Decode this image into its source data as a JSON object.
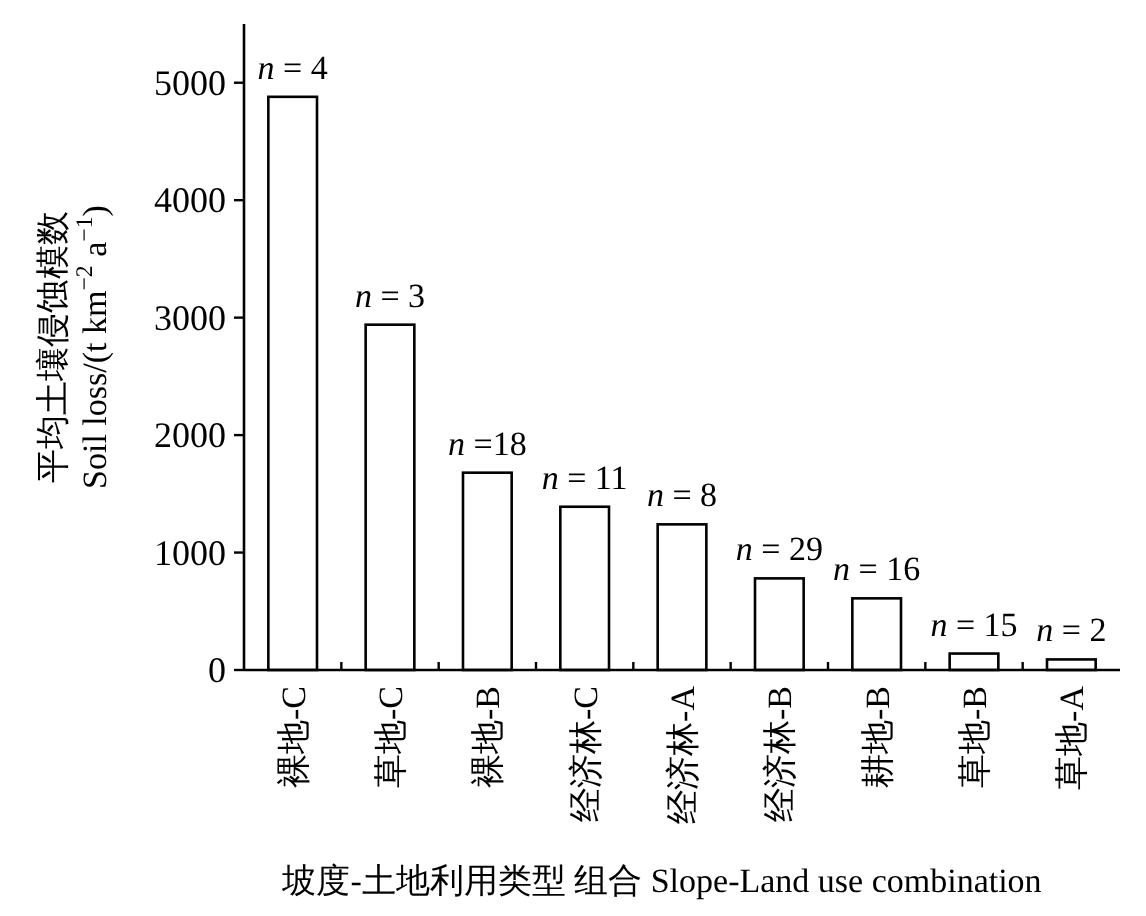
{
  "chart_data": {
    "type": "bar",
    "categories": [
      "裸地-C",
      "草地-C",
      "裸地-B",
      "经济林-C",
      "经济林-A",
      "经济林-B",
      "耕地-B",
      "草地-B",
      "草地-A"
    ],
    "values": [
      4880,
      2940,
      1680,
      1390,
      1240,
      780,
      610,
      140,
      90
    ],
    "color": "#ffffff",
    "ylim": [
      0,
      5500
    ],
    "yticks": [
      0,
      1000,
      2000,
      3000,
      4000,
      5000
    ],
    "xlabel": "坡度-土地利用类型 组合 Slope-Land use combination",
    "ylabel": "平均土壤侵蚀模数\nSoil loss/(t km$^{−2}$ a$^{−1}$)",
    "annotations": [
      {
        "text": "n = 4",
        "x": "裸地-C",
        "y": 4880
      },
      {
        "text": "n = 3",
        "x": "草地-C",
        "y": 2940
      },
      {
        "text": "n =18",
        "x": "裸地-B",
        "y": 1680
      },
      {
        "text": "n = 11",
        "x": "经济林-C",
        "y": 1390
      },
      {
        "text": "n = 8",
        "x": "经济林-A",
        "y": 1240
      },
      {
        "text": "n = 29",
        "x": "经济林-B",
        "y": 780
      },
      {
        "text": "n = 16",
        "x": "耕地-B",
        "y": 610
      },
      {
        "text": "n = 15",
        "x": "草地-B",
        "y": 140
      },
      {
        "text": "n = 2",
        "x": "草地-A",
        "y": 90
      }
    ]
  }
}
